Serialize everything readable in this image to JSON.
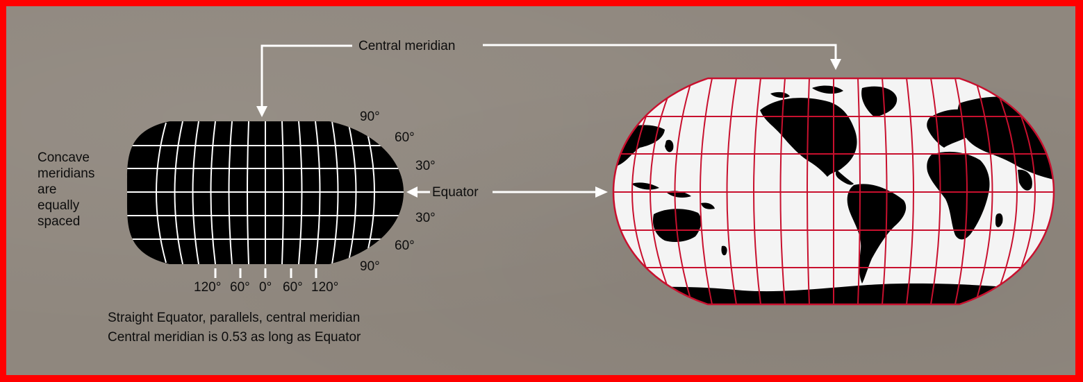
{
  "labels": {
    "central_meridian": "Central meridian",
    "equator": "Equator"
  },
  "side_note": [
    "Concave",
    "meridians",
    "are",
    "equally",
    "spaced"
  ],
  "latitude_labels": [
    "90°",
    "60°",
    "30°",
    "30°",
    "60°",
    "90°"
  ],
  "longitude_labels": [
    "120°",
    "60°",
    "0°",
    "60°",
    "120°"
  ],
  "captions": [
    "Straight Equator, parallels, central meridian",
    "Central meridian is 0.53 as long as Equator"
  ],
  "colors": {
    "frame_border": "#ff0000",
    "background": "#8f877e",
    "graticule_small": "#ffffff",
    "map_fill_small": "#000000",
    "graticule_large": "#c8102e",
    "land": "#000000",
    "ocean": "#f4f4f4",
    "arrow": "#ffffff"
  }
}
